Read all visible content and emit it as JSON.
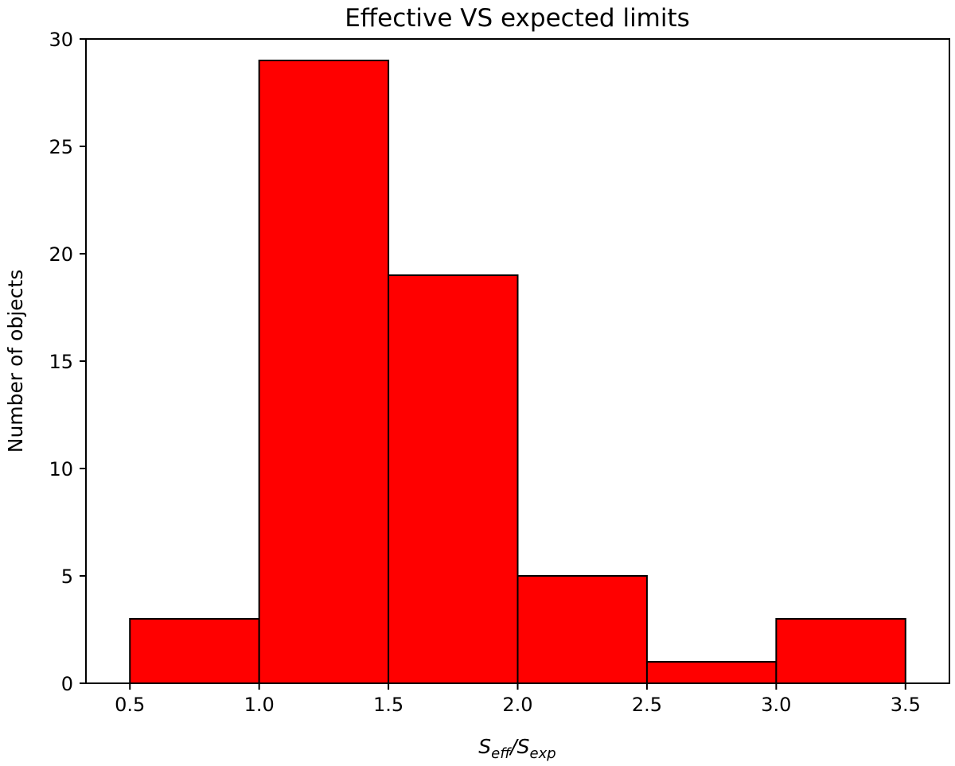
{
  "chart_data": {
    "type": "bar",
    "title": "Effective VS expected limits",
    "xlabel": {
      "s1": "S",
      "sub1": "eff",
      "slash": "/",
      "s2": "S",
      "sub2": "exp"
    },
    "ylabel": "Number of objects",
    "bins": [
      {
        "x0": 0.5,
        "x1": 1.0,
        "value": 3
      },
      {
        "x0": 1.0,
        "x1": 1.5,
        "value": 29
      },
      {
        "x0": 1.5,
        "x1": 2.0,
        "value": 19
      },
      {
        "x0": 2.0,
        "x1": 2.5,
        "value": 5
      },
      {
        "x0": 2.5,
        "x1": 3.0,
        "value": 1
      },
      {
        "x0": 3.0,
        "x1": 3.5,
        "value": 3
      }
    ],
    "xlim": [
      0.33,
      3.67
    ],
    "ylim": [
      0,
      30.0
    ],
    "xticks": [
      0.5,
      1.0,
      1.5,
      2.0,
      2.5,
      3.0,
      3.5
    ],
    "xtick_labels": [
      "0.5",
      "1.0",
      "1.5",
      "2.0",
      "2.5",
      "3.0",
      "3.5"
    ],
    "yticks": [
      0,
      5,
      10,
      15,
      20,
      25,
      30
    ],
    "ytick_labels": [
      "0",
      "5",
      "10",
      "15",
      "20",
      "25",
      "30"
    ],
    "grid": false,
    "bar_color": "#ff0000",
    "edge_color": "#000000"
  }
}
